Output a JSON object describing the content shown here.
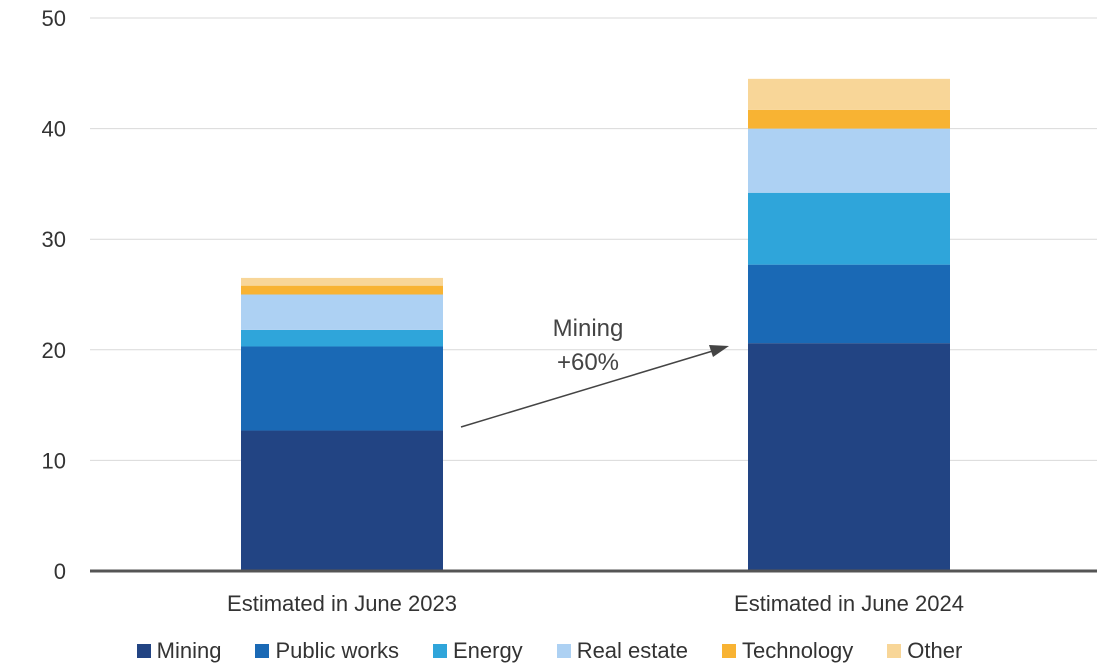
{
  "chart_data": {
    "type": "bar",
    "stacked": true,
    "categories": [
      "Estimated in June 2023",
      "Estimated in June 2024"
    ],
    "series": [
      {
        "name": "Mining",
        "color": "#224483",
        "values": [
          12.7,
          20.6
        ]
      },
      {
        "name": "Public works",
        "color": "#1A69B5",
        "values": [
          7.6,
          7.1
        ]
      },
      {
        "name": "Energy",
        "color": "#2FA5DA",
        "values": [
          1.5,
          6.5
        ]
      },
      {
        "name": "Real estate",
        "color": "#ADD1F3",
        "values": [
          3.2,
          5.8
        ]
      },
      {
        "name": "Technology",
        "color": "#F8B333",
        "values": [
          0.8,
          1.7
        ]
      },
      {
        "name": "Other",
        "color": "#F8D698",
        "values": [
          0.7,
          2.8
        ]
      }
    ],
    "yticks": [
      0,
      10,
      20,
      30,
      40,
      50
    ],
    "ylim": [
      0,
      50
    ],
    "grid": true,
    "legend_position": "bottom",
    "annotation": {
      "lines": [
        "Mining",
        "+60%"
      ]
    }
  }
}
